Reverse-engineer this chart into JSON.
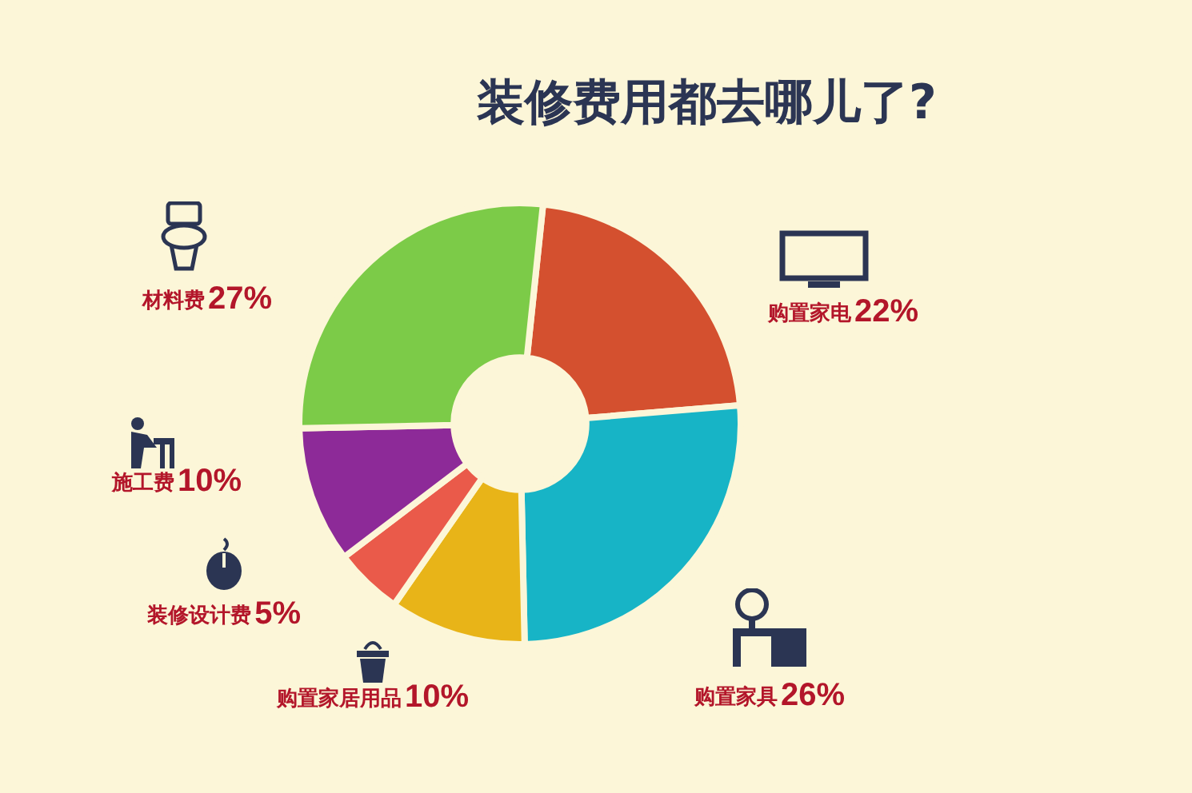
{
  "chart_data": {
    "type": "donut",
    "title": "装修费用都去哪儿了?",
    "categories": [
      "购置家电",
      "购置家具",
      "购置家居用品",
      "装修设计费",
      "施工费",
      "材料费"
    ],
    "values": [
      22,
      26,
      10,
      5,
      10,
      27
    ],
    "value_labels": [
      "22%",
      "26%",
      "10%",
      "5%",
      "10%",
      "27%"
    ],
    "colors": [
      "#d4502f",
      "#17b4c6",
      "#e8b418",
      "#ea5a4a",
      "#8d2a98",
      "#7ccb48"
    ],
    "legend": false
  }
}
